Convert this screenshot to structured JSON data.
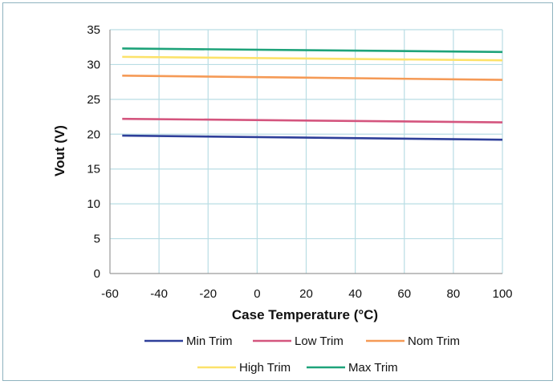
{
  "chart_data": {
    "type": "line",
    "title": "",
    "xlabel": "Case Temperature (°C)",
    "ylabel": "Vout (V)",
    "xlim": [
      -60,
      100
    ],
    "ylim": [
      0,
      35
    ],
    "x_ticks": [
      -60,
      -40,
      -20,
      0,
      20,
      40,
      60,
      80,
      100
    ],
    "y_ticks": [
      0,
      5,
      10,
      15,
      20,
      25,
      30,
      35
    ],
    "grid": true,
    "legend_position": "bottom",
    "series": [
      {
        "name": "Min Trim",
        "color": "#2e3f9a",
        "x": [
          -55,
          100
        ],
        "y": [
          19.8,
          19.2
        ]
      },
      {
        "name": "Low Trim",
        "color": "#d4557e",
        "x": [
          -55,
          100
        ],
        "y": [
          22.2,
          21.7
        ]
      },
      {
        "name": "Nom Trim",
        "color": "#f59a56",
        "x": [
          -55,
          100
        ],
        "y": [
          28.4,
          27.8
        ]
      },
      {
        "name": "High Trim",
        "color": "#fce26a",
        "x": [
          -55,
          100
        ],
        "y": [
          31.1,
          30.6
        ]
      },
      {
        "name": "Max Trim",
        "color": "#1ea37a",
        "x": [
          -55,
          100
        ],
        "y": [
          32.3,
          31.8
        ]
      }
    ],
    "colors": {
      "grid": "#b9dde4",
      "axis": "#9a9a9a"
    }
  }
}
